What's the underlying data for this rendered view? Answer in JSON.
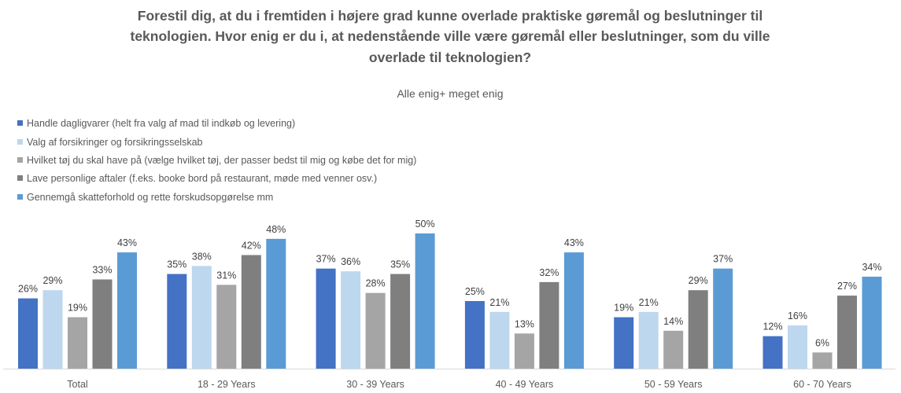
{
  "chart_data": {
    "type": "bar",
    "title": "Forestil dig, at du i fremtiden i højere grad kunne overlade praktiske gøremål og beslutninger til teknologien. Hvor enig er du i, at nedenstående ville være gøremål eller beslutninger, som du ville overlade til teknologien?",
    "title_lines": [
      "Forestil dig, at du i fremtiden i højere grad kunne overlade praktiske gøremål og beslutninger til",
      "teknologien. Hvor enig er du i, at nedenstående ville være gøremål eller beslutninger, som du ville",
      "overlade til teknologien?"
    ],
    "subtitle": "Alle enig+ meget enig",
    "xlabel": "",
    "ylabel": "",
    "ylim": [
      0,
      55
    ],
    "grid": false,
    "legend_position": "top-left",
    "value_format": "percent",
    "categories": [
      "Total",
      "18 - 29 Years",
      "30 - 39 Years",
      "40 - 49 Years",
      "50 - 59 Years",
      "60 - 70 Years"
    ],
    "series": [
      {
        "name": "Handle dagligvarer (helt fra valg af mad til indkøb og levering)",
        "color": "#4472C4",
        "values": [
          26,
          35,
          37,
          25,
          19,
          12
        ]
      },
      {
        "name": "Valg af forsikringer og forsikringsselskab",
        "color": "#BDD7EE",
        "values": [
          29,
          38,
          36,
          21,
          21,
          16
        ]
      },
      {
        "name": "Hvilket tøj du skal have på (vælge hvilket tøj, der passer bedst til mig og købe det for mig)",
        "color": "#A5A5A5",
        "values": [
          19,
          31,
          28,
          13,
          14,
          6
        ]
      },
      {
        "name": "Lave personlige aftaler (f.eks. booke bord på restaurant, møde med venner osv.)",
        "color": "#7F7F7F",
        "values": [
          33,
          42,
          35,
          32,
          29,
          27
        ]
      },
      {
        "name": "Gennemgå skatteforhold og rette forskudsopgørelse mm",
        "color": "#5B9BD5",
        "values": [
          43,
          48,
          50,
          43,
          37,
          34
        ]
      }
    ]
  }
}
